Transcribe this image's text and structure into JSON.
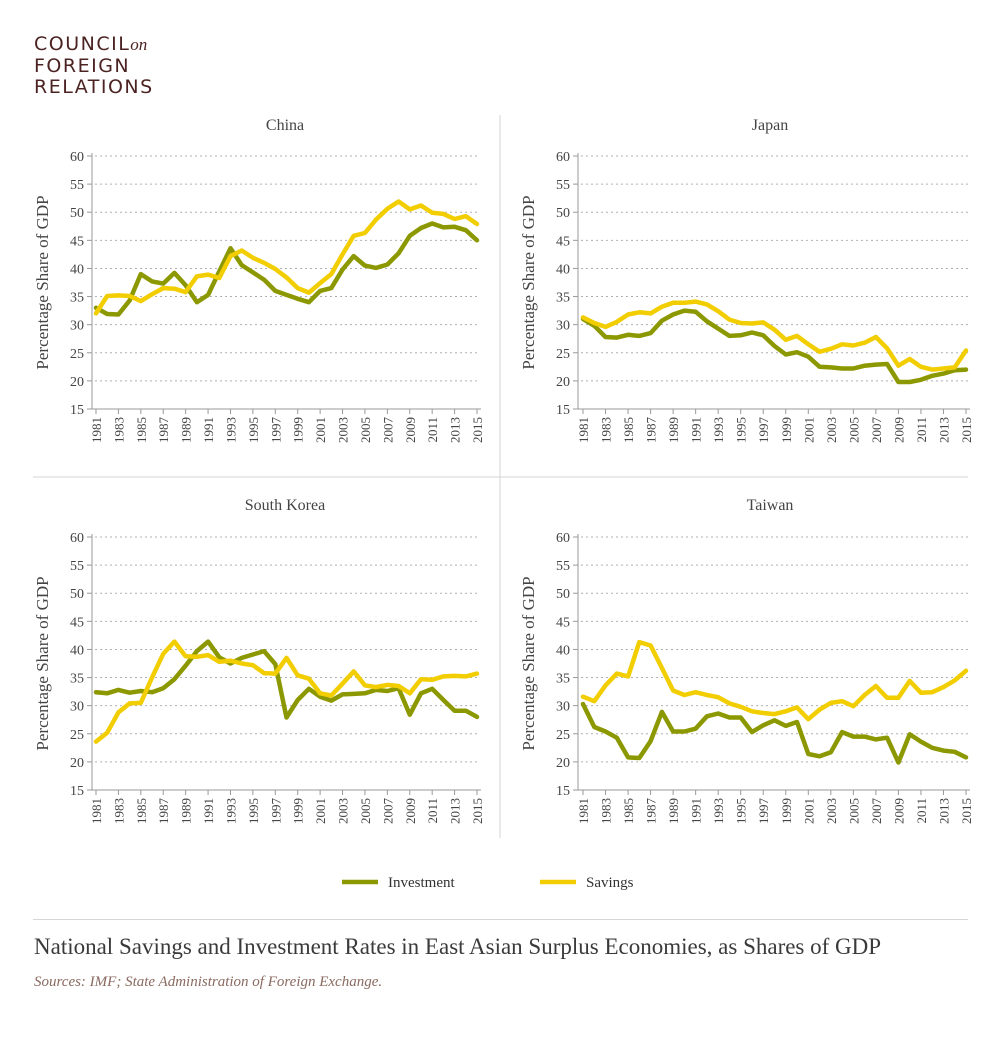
{
  "logo": {
    "line1": "COUNCIL",
    "on": "on",
    "line2": "FOREIGN",
    "line3": "RELATIONS"
  },
  "title": "National Savings and Investment Rates in East Asian Surplus Economies, as Shares of GDP",
  "sources": "Sources: IMF; State Administration of Foreign Exchange.",
  "legend": [
    {
      "label": "Investment",
      "color": "#8c9800"
    },
    {
      "label": "Savings",
      "color": "#f2cd00"
    }
  ],
  "chart_data": [
    {
      "type": "line",
      "title": "China",
      "xlabel": "",
      "ylabel": "Percentage Share of GDP",
      "ylim": [
        15,
        60
      ],
      "yticks": [
        15,
        20,
        25,
        30,
        35,
        40,
        45,
        50,
        55,
        60
      ],
      "grid": true,
      "x": [
        1981,
        1982,
        1983,
        1984,
        1985,
        1986,
        1987,
        1988,
        1989,
        1990,
        1991,
        1992,
        1993,
        1994,
        1995,
        1996,
        1997,
        1998,
        1999,
        2000,
        2001,
        2002,
        2003,
        2004,
        2005,
        2006,
        2007,
        2008,
        2009,
        2010,
        2011,
        2012,
        2013,
        2014,
        2015
      ],
      "series": [
        {
          "name": "Investment",
          "values": [
            33,
            31.9,
            31.8,
            34.3,
            39,
            37.7,
            37.3,
            39.2,
            37,
            34,
            35.3,
            39.5,
            43.6,
            40.6,
            39.3,
            38,
            36,
            35.3,
            34.6,
            34,
            36,
            36.5,
            39.8,
            42.2,
            40.5,
            40.1,
            40.7,
            42.7,
            45.8,
            47.2,
            48,
            47.3,
            47.4,
            46.8,
            45
          ]
        },
        {
          "name": "Savings",
          "values": [
            32,
            35.1,
            35.2,
            35.1,
            34.2,
            35.4,
            36.5,
            36.4,
            35.8,
            38.6,
            38.9,
            38.3,
            42.2,
            43.2,
            41.9,
            41,
            39.9,
            38.4,
            36.5,
            35.7,
            37.4,
            39,
            42.5,
            45.8,
            46.3,
            48.7,
            50.6,
            51.9,
            50.5,
            51.2,
            49.9,
            49.7,
            48.8,
            49.3,
            47.9
          ]
        }
      ]
    },
    {
      "type": "line",
      "title": "Japan",
      "xlabel": "",
      "ylabel": "Percentage Share of GDP",
      "ylim": [
        15,
        60
      ],
      "yticks": [
        15,
        20,
        25,
        30,
        35,
        40,
        45,
        50,
        55,
        60
      ],
      "grid": true,
      "x": [
        1981,
        1982,
        1983,
        1984,
        1985,
        1986,
        1987,
        1988,
        1989,
        1990,
        1991,
        1992,
        1993,
        1994,
        1995,
        1996,
        1997,
        1998,
        1999,
        2000,
        2001,
        2002,
        2003,
        2004,
        2005,
        2006,
        2007,
        2008,
        2009,
        2010,
        2011,
        2012,
        2013,
        2014,
        2015
      ],
      "series": [
        {
          "name": "Investment",
          "values": [
            31,
            29.8,
            27.8,
            27.7,
            28.2,
            28,
            28.5,
            30.7,
            31.8,
            32.5,
            32.3,
            30.6,
            29.3,
            28,
            28.1,
            28.6,
            28.1,
            26.2,
            24.7,
            25.1,
            24.3,
            22.5,
            22.4,
            22.2,
            22.2,
            22.7,
            22.9,
            23,
            19.8,
            19.8,
            20.2,
            20.9,
            21.3,
            21.9,
            22
          ]
        },
        {
          "name": "Savings",
          "values": [
            31.3,
            30.3,
            29.6,
            30.5,
            31.8,
            32.2,
            32,
            33.2,
            33.9,
            33.9,
            34.1,
            33.6,
            32.4,
            30.9,
            30.3,
            30.2,
            30.4,
            29.1,
            27.3,
            28,
            26.5,
            25.2,
            25.7,
            26.5,
            26.3,
            26.8,
            27.8,
            25.8,
            22.7,
            23.9,
            22.5,
            22,
            22.2,
            22.4,
            25.4
          ]
        }
      ]
    },
    {
      "type": "line",
      "title": "South Korea",
      "xlabel": "",
      "ylabel": "Percentage Share of GDP",
      "ylim": [
        15,
        60
      ],
      "yticks": [
        15,
        20,
        25,
        30,
        35,
        40,
        45,
        50,
        55,
        60
      ],
      "grid": true,
      "x": [
        1981,
        1982,
        1983,
        1984,
        1985,
        1986,
        1987,
        1988,
        1989,
        1990,
        1991,
        1992,
        1993,
        1994,
        1995,
        1996,
        1997,
        1998,
        1999,
        2000,
        2001,
        2002,
        2003,
        2004,
        2005,
        2006,
        2007,
        2008,
        2009,
        2010,
        2011,
        2012,
        2013,
        2014,
        2015
      ],
      "series": [
        {
          "name": "Investment",
          "values": [
            32.4,
            32.2,
            32.8,
            32.3,
            32.6,
            32.4,
            33.1,
            34.7,
            37.1,
            39.7,
            41.4,
            38.6,
            37.5,
            38.5,
            39.1,
            39.7,
            37.4,
            27.9,
            31,
            33,
            31.6,
            30.9,
            32,
            32.1,
            32.2,
            32.8,
            32.6,
            33.1,
            28.4,
            32.2,
            33,
            31,
            29.1,
            29.1,
            28
          ]
        },
        {
          "name": "Savings",
          "values": [
            23.6,
            25.2,
            28.8,
            30.4,
            30.5,
            35,
            39.2,
            41.4,
            38.8,
            38.7,
            39,
            37.8,
            38,
            37.5,
            37.2,
            35.8,
            35.7,
            38.5,
            35.4,
            34.8,
            32.2,
            31.8,
            33.9,
            36.1,
            33.6,
            33.3,
            33.7,
            33.5,
            32.2,
            34.7,
            34.6,
            35.2,
            35.3,
            35.2,
            35.7
          ]
        }
      ]
    },
    {
      "type": "line",
      "title": "Taiwan",
      "xlabel": "",
      "ylabel": "Percentage Share of GDP",
      "ylim": [
        15,
        60
      ],
      "yticks": [
        15,
        20,
        25,
        30,
        35,
        40,
        45,
        50,
        55,
        60
      ],
      "grid": true,
      "x": [
        1981,
        1982,
        1983,
        1984,
        1985,
        1986,
        1987,
        1988,
        1989,
        1990,
        1991,
        1992,
        1993,
        1994,
        1995,
        1996,
        1997,
        1998,
        1999,
        2000,
        2001,
        2002,
        2003,
        2004,
        2005,
        2006,
        2007,
        2008,
        2009,
        2010,
        2011,
        2012,
        2013,
        2014,
        2015
      ],
      "series": [
        {
          "name": "Investment",
          "values": [
            30.3,
            26.2,
            25.4,
            24.3,
            20.8,
            20.7,
            23.7,
            28.9,
            25.4,
            25.4,
            25.9,
            28.1,
            28.6,
            27.9,
            27.9,
            25.3,
            26.5,
            27.4,
            26.4,
            27.1,
            21.4,
            21,
            21.7,
            25.3,
            24.5,
            24.5,
            24,
            24.3,
            19.9,
            24.9,
            23.6,
            22.5,
            22,
            21.8,
            20.8
          ]
        },
        {
          "name": "Savings",
          "values": [
            31.6,
            30.8,
            33.6,
            35.7,
            35.2,
            41.3,
            40.7,
            36.7,
            32.7,
            31.9,
            32.4,
            31.9,
            31.5,
            30.4,
            29.8,
            29,
            28.7,
            28.5,
            29,
            29.7,
            27.6,
            29.3,
            30.5,
            30.8,
            29.9,
            31.9,
            33.5,
            31.4,
            31.4,
            34.4,
            32.3,
            32.4,
            33.3,
            34.5,
            36.2
          ]
        }
      ]
    }
  ]
}
